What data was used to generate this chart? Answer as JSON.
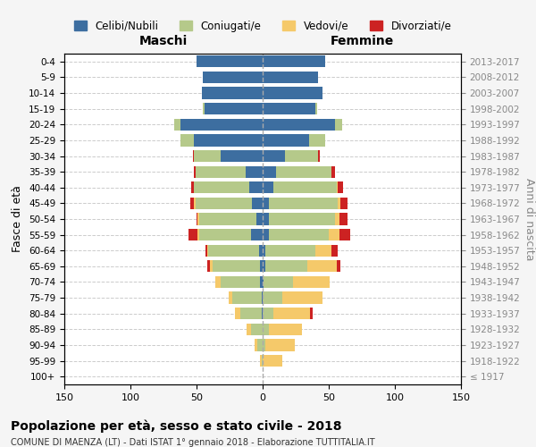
{
  "age_groups": [
    "100+",
    "95-99",
    "90-94",
    "85-89",
    "80-84",
    "75-79",
    "70-74",
    "65-69",
    "60-64",
    "55-59",
    "50-54",
    "45-49",
    "40-44",
    "35-39",
    "30-34",
    "25-29",
    "20-24",
    "15-19",
    "10-14",
    "5-9",
    "0-4"
  ],
  "birth_years": [
    "≤ 1917",
    "1918-1922",
    "1923-1927",
    "1928-1932",
    "1933-1937",
    "1938-1942",
    "1943-1947",
    "1948-1952",
    "1953-1957",
    "1958-1962",
    "1963-1967",
    "1968-1972",
    "1973-1977",
    "1978-1982",
    "1983-1987",
    "1988-1992",
    "1993-1997",
    "1998-2002",
    "2003-2007",
    "2008-2012",
    "2013-2017"
  ],
  "maschi": {
    "celibi": [
      0,
      0,
      0,
      0,
      1,
      1,
      2,
      2,
      3,
      9,
      5,
      8,
      10,
      13,
      32,
      52,
      62,
      44,
      46,
      45,
      50
    ],
    "coniugati": [
      0,
      1,
      4,
      9,
      16,
      22,
      30,
      36,
      38,
      39,
      43,
      43,
      42,
      38,
      20,
      10,
      5,
      1,
      0,
      0,
      0
    ],
    "vedovi": [
      0,
      1,
      2,
      3,
      4,
      3,
      4,
      2,
      1,
      1,
      1,
      1,
      0,
      0,
      0,
      0,
      0,
      0,
      0,
      0,
      0
    ],
    "divorziati": [
      0,
      0,
      0,
      0,
      0,
      0,
      0,
      2,
      1,
      7,
      1,
      3,
      2,
      1,
      1,
      0,
      0,
      0,
      0,
      0,
      0
    ]
  },
  "femmine": {
    "nubili": [
      0,
      0,
      0,
      0,
      0,
      0,
      1,
      2,
      2,
      5,
      5,
      5,
      8,
      10,
      17,
      35,
      55,
      40,
      45,
      42,
      47
    ],
    "coniugate": [
      0,
      0,
      2,
      5,
      8,
      15,
      22,
      32,
      38,
      45,
      50,
      52,
      48,
      42,
      25,
      12,
      5,
      1,
      0,
      0,
      0
    ],
    "vedove": [
      0,
      15,
      22,
      25,
      28,
      30,
      28,
      22,
      12,
      8,
      3,
      2,
      1,
      0,
      0,
      0,
      0,
      0,
      0,
      0,
      0
    ],
    "divorziate": [
      0,
      0,
      0,
      0,
      2,
      0,
      0,
      3,
      5,
      8,
      6,
      5,
      4,
      3,
      1,
      0,
      0,
      0,
      0,
      0,
      0
    ]
  },
  "colors": {
    "celibi": "#3d6ea0",
    "coniugati": "#b5c98a",
    "vedovi": "#f5c96a",
    "divorziati": "#cc2222"
  },
  "xlim": 150,
  "title": "Popolazione per età, sesso e stato civile - 2018",
  "subtitle": "COMUNE DI MAENZA (LT) - Dati ISTAT 1° gennaio 2018 - Elaborazione TUTTITALIA.IT",
  "ylabel": "Fasce di età",
  "ylabel2": "Anni di nascita",
  "xlabel_left": "Maschi",
  "xlabel_right": "Femmine",
  "bg_color": "#f5f5f5",
  "plot_bg": "#ffffff",
  "legend_labels": [
    "Celibi/Nubili",
    "Coniugati/e",
    "Vedovi/e",
    "Divorziati/e"
  ]
}
